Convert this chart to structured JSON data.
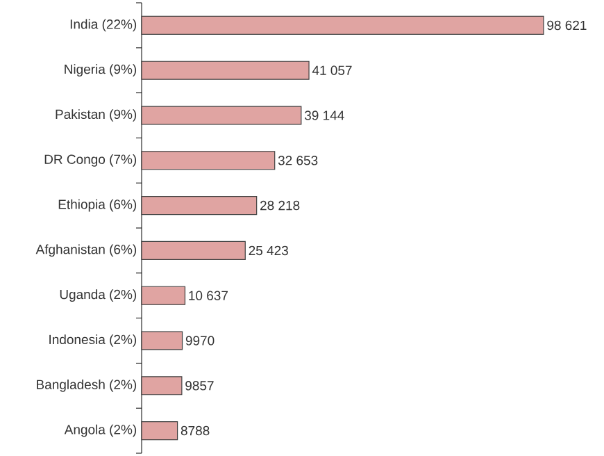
{
  "chart_data": {
    "type": "bar",
    "orientation": "horizontal",
    "categories": [
      "India (22%)",
      "Nigeria (9%)",
      "Pakistan (9%)",
      "DR Congo (7%)",
      "Ethiopia (6%)",
      "Afghanistan (6%)",
      "Uganda (2%)",
      "Indonesia (2%)",
      "Bangladesh (2%)",
      "Angola (2%)"
    ],
    "values": [
      98621,
      41057,
      39144,
      32653,
      28218,
      25423,
      10637,
      9970,
      9857,
      8788
    ],
    "value_labels": [
      "98 621",
      "41 057",
      "39 144",
      "32 653",
      "28 218",
      "25 423",
      "10 637",
      "9970",
      "9857",
      "8788"
    ],
    "color": "#e0a4a2",
    "tick_labels": "y"
  }
}
